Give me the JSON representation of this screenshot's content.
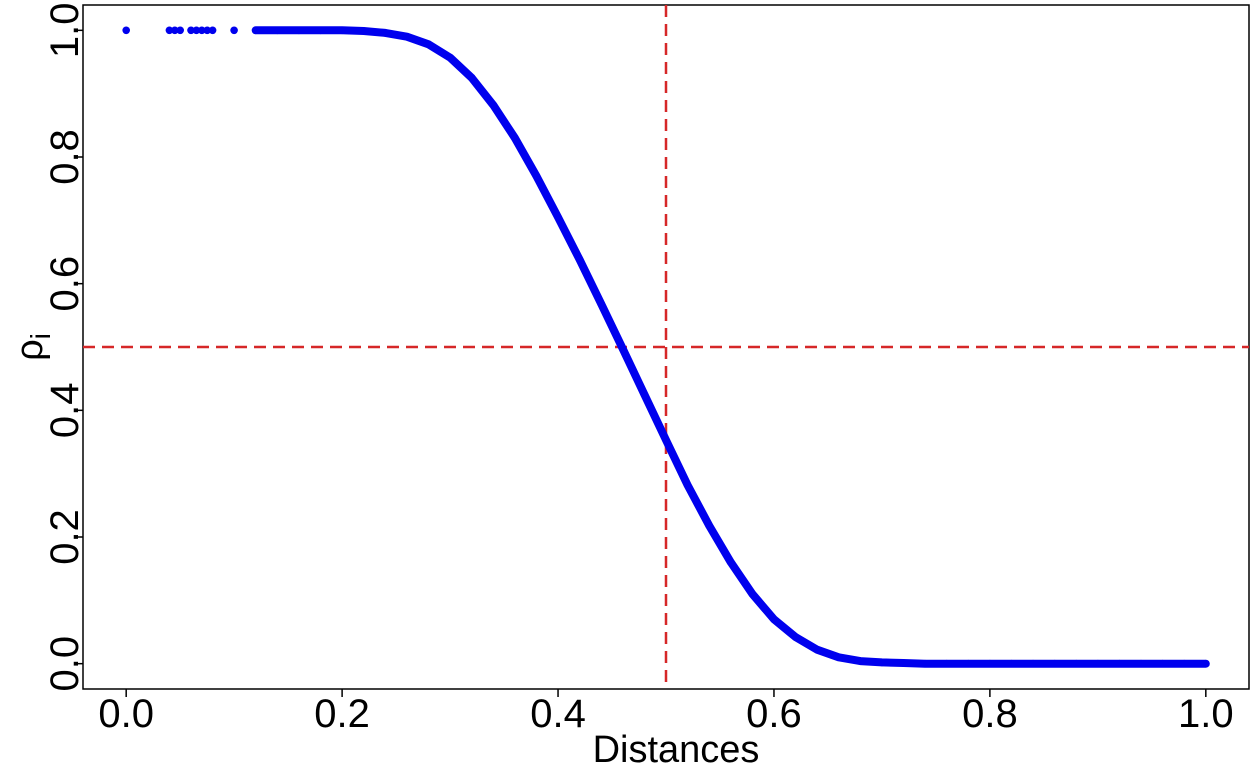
{
  "chart_data": {
    "type": "scatter",
    "xlabel": "Distances",
    "ylabel_main": "ρ",
    "ylabel_sub": "i",
    "xlim": [
      -0.04,
      1.04
    ],
    "ylim": [
      -0.04,
      1.04
    ],
    "x_ticks": [
      0.0,
      0.2,
      0.4,
      0.6,
      0.8,
      1.0
    ],
    "x_tick_labels": [
      "0.0",
      "0.2",
      "0.4",
      "0.6",
      "0.8",
      "1.0"
    ],
    "y_ticks": [
      0.0,
      0.2,
      0.4,
      0.6,
      0.8,
      1.0
    ],
    "y_tick_labels": [
      "0.0",
      "0.2",
      "0.4",
      "0.6",
      "0.8",
      "1.0"
    ],
    "grid": false,
    "reference_lines": {
      "vertical_x": 0.5,
      "horizontal_y": 0.5,
      "color": "#d62728",
      "style": "dashed"
    },
    "series": [
      {
        "color": "#0000ee",
        "x": [
          0.0,
          0.04,
          0.045,
          0.05,
          0.06,
          0.065,
          0.07,
          0.075,
          0.08,
          0.1,
          0.12,
          0.14,
          0.16,
          0.18,
          0.2,
          0.22,
          0.24,
          0.26,
          0.28,
          0.3,
          0.32,
          0.34,
          0.36,
          0.38,
          0.4,
          0.42,
          0.44,
          0.46,
          0.48,
          0.5,
          0.52,
          0.54,
          0.56,
          0.58,
          0.6,
          0.62,
          0.64,
          0.66,
          0.68,
          0.7,
          0.72,
          0.74,
          0.76,
          0.78,
          0.8,
          0.82,
          0.84,
          0.86,
          0.88,
          0.9,
          0.92,
          0.94,
          0.96,
          0.98,
          1.0
        ],
        "y": [
          1.0,
          1.0,
          1.0,
          1.0,
          1.0,
          1.0,
          1.0,
          1.0,
          1.0,
          1.0,
          1.0,
          1.0,
          1.0,
          1.0,
          1.0,
          0.999,
          0.996,
          0.99,
          0.978,
          0.957,
          0.925,
          0.882,
          0.83,
          0.77,
          0.705,
          0.638,
          0.568,
          0.497,
          0.425,
          0.353,
          0.282,
          0.218,
          0.16,
          0.11,
          0.07,
          0.042,
          0.022,
          0.01,
          0.004,
          0.002,
          0.001,
          0.0,
          0.0,
          0.0,
          0.0,
          0.0,
          0.0,
          0.0,
          0.0,
          0.0,
          0.0,
          0.0,
          0.0,
          0.0,
          0.0
        ]
      }
    ]
  }
}
